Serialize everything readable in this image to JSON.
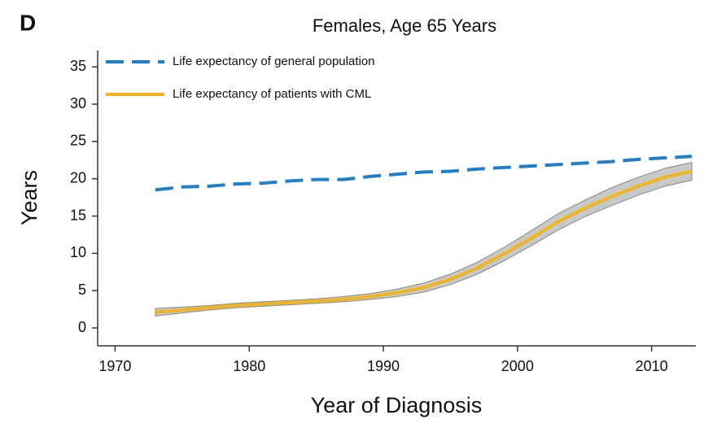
{
  "chart_data": {
    "type": "line",
    "panel_label": "D",
    "title": "Females, Age 65 Years",
    "x_label": "Year of Diagnosis",
    "y_label": "Years",
    "x": [
      1973,
      1975,
      1977,
      1979,
      1981,
      1983,
      1985,
      1987,
      1989,
      1991,
      1993,
      1995,
      1997,
      1999,
      2001,
      2003,
      2005,
      2007,
      2009,
      2011,
      2013
    ],
    "series": [
      {
        "name": "Life expectancy of general population",
        "color": "#1f7fc8",
        "dashed": true,
        "values": [
          18.5,
          18.9,
          19.0,
          19.3,
          19.4,
          19.7,
          19.9,
          19.9,
          20.3,
          20.6,
          20.9,
          21.0,
          21.3,
          21.5,
          21.7,
          21.9,
          22.1,
          22.3,
          22.6,
          22.8,
          23.0
        ]
      },
      {
        "name": "Life expectancy of patients with CML",
        "color": "#f0b41e",
        "dashed": false,
        "band_color": "#c8c8c8",
        "values": [
          2.1,
          2.4,
          2.7,
          3.0,
          3.2,
          3.4,
          3.6,
          3.8,
          4.2,
          4.7,
          5.4,
          6.5,
          8.0,
          9.9,
          12.0,
          14.2,
          16.0,
          17.6,
          19.0,
          20.2,
          21.0
        ],
        "lower": [
          1.6,
          2.0,
          2.4,
          2.7,
          2.9,
          3.1,
          3.3,
          3.5,
          3.8,
          4.2,
          4.8,
          5.8,
          7.2,
          9.0,
          11.0,
          13.1,
          14.9,
          16.4,
          17.8,
          19.0,
          19.8
        ],
        "upper": [
          2.6,
          2.8,
          3.0,
          3.3,
          3.5,
          3.7,
          3.9,
          4.2,
          4.6,
          5.2,
          6.0,
          7.2,
          8.8,
          10.8,
          13.0,
          15.3,
          17.1,
          18.8,
          20.2,
          21.4,
          22.2
        ]
      }
    ],
    "xlim": [
      1968.7,
      2013.3
    ],
    "ylim": [
      -2.4,
      37.2
    ],
    "xticks": [
      1970,
      1980,
      1990,
      2000,
      2010
    ],
    "yticks": [
      0,
      5,
      10,
      15,
      20,
      25,
      30,
      35
    ],
    "legend": "upper-left"
  }
}
